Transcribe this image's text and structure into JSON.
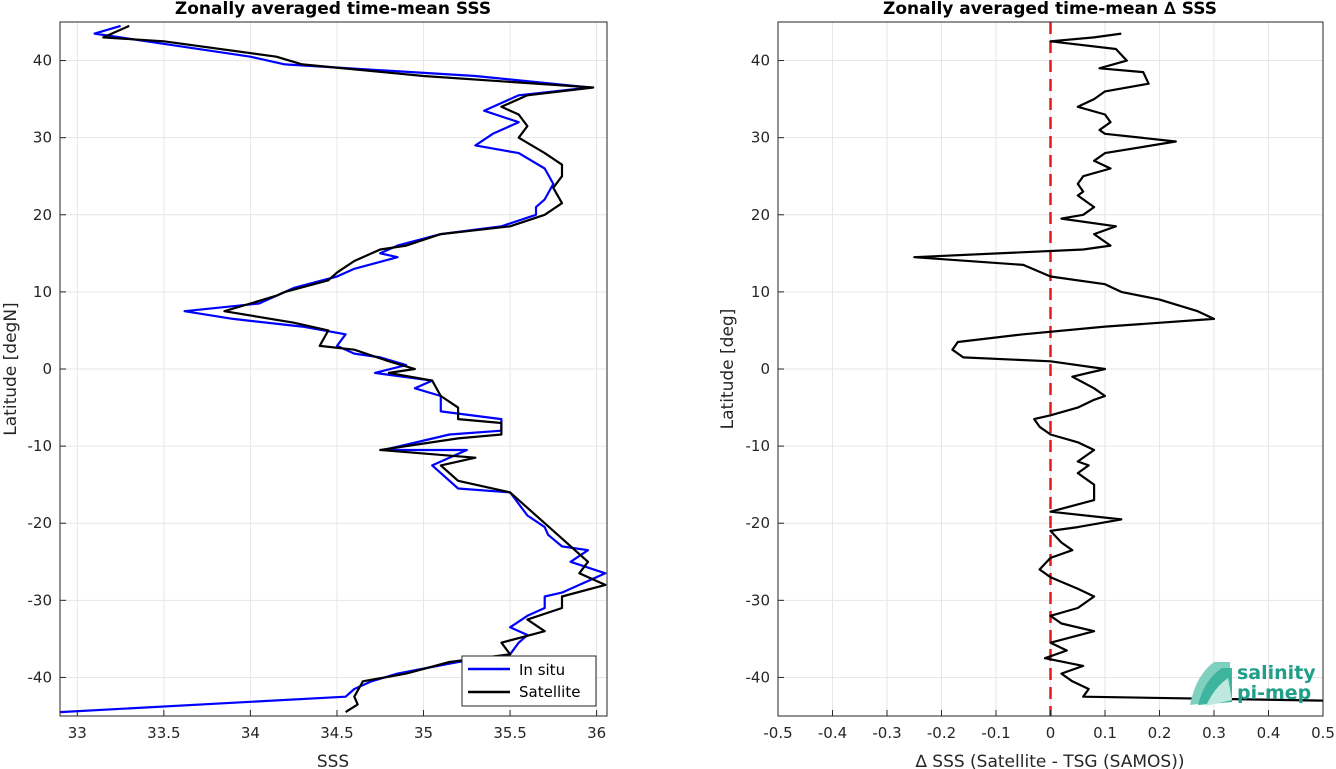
{
  "chart_data": [
    {
      "type": "line",
      "title": "Zonally averaged time-mean SSS",
      "xlabel": "SSS",
      "ylabel": "Latitude [degN]",
      "xlim": [
        32.9,
        36.06
      ],
      "ylim": [
        -45,
        45
      ],
      "xticks": [
        "33",
        "33.5",
        "34",
        "34.5",
        "35",
        "35.5",
        "36"
      ],
      "xtick_values": [
        33,
        33.5,
        34,
        34.5,
        35,
        35.5,
        36
      ],
      "yticks": [
        "-40",
        "-30",
        "-20",
        "-10",
        "0",
        "10",
        "20",
        "30",
        "40"
      ],
      "ytick_values": [
        -40,
        -30,
        -20,
        -10,
        0,
        10,
        20,
        30,
        40
      ],
      "grid": true,
      "legend": "bottom-right",
      "series": [
        {
          "name": "In situ",
          "color": "#0000ff",
          "points": [
            [
              33.25,
              44.5
            ],
            [
              33.1,
              43.5
            ],
            [
              33.4,
              42.5
            ],
            [
              34.0,
              40.5
            ],
            [
              34.2,
              39.5
            ],
            [
              35.3,
              38
            ],
            [
              35.96,
              36.5
            ],
            [
              35.55,
              35.5
            ],
            [
              35.45,
              34.5
            ],
            [
              35.35,
              33.5
            ],
            [
              35.55,
              32
            ],
            [
              35.4,
              30.5
            ],
            [
              35.3,
              29
            ],
            [
              35.55,
              28
            ],
            [
              35.7,
              26
            ],
            [
              35.75,
              24
            ],
            [
              35.7,
              22
            ],
            [
              35.65,
              21
            ],
            [
              35.65,
              20
            ],
            [
              35.45,
              18.5
            ],
            [
              35.1,
              17.5
            ],
            [
              34.85,
              16
            ],
            [
              34.75,
              15
            ],
            [
              34.85,
              14.5
            ],
            [
              34.6,
              13
            ],
            [
              34.5,
              12
            ],
            [
              34.25,
              10.5
            ],
            [
              34.15,
              9.5
            ],
            [
              34.05,
              8.5
            ],
            [
              33.62,
              7.5
            ],
            [
              33.9,
              6.5
            ],
            [
              34.3,
              5.5
            ],
            [
              34.55,
              4.5
            ],
            [
              34.5,
              3
            ],
            [
              34.6,
              2
            ],
            [
              34.75,
              1.5
            ],
            [
              34.9,
              0.5
            ],
            [
              34.72,
              -0.5
            ],
            [
              35.05,
              -1.5
            ],
            [
              34.95,
              -2.5
            ],
            [
              35.1,
              -3.5
            ],
            [
              35.1,
              -5.5
            ],
            [
              35.45,
              -6.5
            ],
            [
              35.45,
              -8
            ],
            [
              35.15,
              -8.5
            ],
            [
              34.77,
              -10.5
            ],
            [
              35.25,
              -10.5
            ],
            [
              35.05,
              -12.5
            ],
            [
              35.1,
              -13.5
            ],
            [
              35.2,
              -15.5
            ],
            [
              35.5,
              -16
            ],
            [
              35.55,
              -17.5
            ],
            [
              35.6,
              -19
            ],
            [
              35.7,
              -20.5
            ],
            [
              35.72,
              -21.5
            ],
            [
              35.8,
              -23
            ],
            [
              35.95,
              -23.5
            ],
            [
              35.85,
              -25
            ],
            [
              36.05,
              -26.5
            ],
            [
              35.8,
              -29
            ],
            [
              35.7,
              -29.5
            ],
            [
              35.7,
              -31
            ],
            [
              35.6,
              -32
            ],
            [
              35.5,
              -33.5
            ],
            [
              35.6,
              -34.5
            ],
            [
              35.55,
              -35.5
            ],
            [
              35.5,
              -37
            ],
            [
              35.2,
              -38
            ],
            [
              34.85,
              -39.5
            ],
            [
              34.7,
              -40.5
            ],
            [
              34.6,
              -41.5
            ],
            [
              34.55,
              -42.5
            ],
            [
              32.9,
              -44.5
            ]
          ]
        },
        {
          "name": "Satellite",
          "color": "#000000",
          "points": [
            [
              33.3,
              44.5
            ],
            [
              33.15,
              43
            ],
            [
              33.5,
              42.5
            ],
            [
              34.15,
              40.5
            ],
            [
              34.3,
              39.5
            ],
            [
              35.0,
              38
            ],
            [
              35.98,
              36.5
            ],
            [
              35.6,
              35.5
            ],
            [
              35.45,
              34
            ],
            [
              35.55,
              33
            ],
            [
              35.6,
              31.5
            ],
            [
              35.55,
              30
            ],
            [
              35.7,
              28
            ],
            [
              35.8,
              26.5
            ],
            [
              35.8,
              25
            ],
            [
              35.75,
              23.5
            ],
            [
              35.8,
              21.5
            ],
            [
              35.7,
              20
            ],
            [
              35.5,
              18.5
            ],
            [
              35.1,
              17.5
            ],
            [
              34.9,
              16
            ],
            [
              34.75,
              15.5
            ],
            [
              34.6,
              14
            ],
            [
              34.5,
              12.5
            ],
            [
              34.45,
              11.5
            ],
            [
              34.2,
              10
            ],
            [
              34.15,
              9.5
            ],
            [
              34.0,
              8.5
            ],
            [
              33.85,
              7.5
            ],
            [
              34.25,
              6
            ],
            [
              34.45,
              5
            ],
            [
              34.4,
              3
            ],
            [
              34.6,
              2.5
            ],
            [
              34.8,
              1
            ],
            [
              34.95,
              0
            ],
            [
              34.8,
              -0.5
            ],
            [
              35.05,
              -1.5
            ],
            [
              35.1,
              -3.5
            ],
            [
              35.2,
              -5
            ],
            [
              35.2,
              -6.5
            ],
            [
              35.45,
              -7
            ],
            [
              35.45,
              -8.5
            ],
            [
              35.2,
              -9
            ],
            [
              34.75,
              -10.5
            ],
            [
              35.3,
              -11.5
            ],
            [
              35.1,
              -12.5
            ],
            [
              35.2,
              -14.5
            ],
            [
              35.5,
              -16
            ],
            [
              35.6,
              -18
            ],
            [
              35.7,
              -20
            ],
            [
              35.8,
              -22
            ],
            [
              35.9,
              -24
            ],
            [
              35.95,
              -25
            ],
            [
              35.9,
              -26.5
            ],
            [
              36.05,
              -28
            ],
            [
              35.8,
              -29.5
            ],
            [
              35.8,
              -31
            ],
            [
              35.6,
              -32.5
            ],
            [
              35.7,
              -34
            ],
            [
              35.45,
              -35.5
            ],
            [
              35.5,
              -37
            ],
            [
              35.15,
              -38
            ],
            [
              34.9,
              -39.5
            ],
            [
              34.65,
              -40.5
            ],
            [
              34.6,
              -42.5
            ],
            [
              34.62,
              -43.5
            ],
            [
              34.55,
              -44.5
            ]
          ]
        }
      ]
    },
    {
      "type": "line",
      "title": "Zonally averaged time-mean ∆ SSS",
      "xlabel": "∆ SSS (Satellite - TSG (SAMOS))",
      "ylabel": "Latitude [deg]",
      "xlim": [
        -0.5,
        0.5
      ],
      "ylim": [
        -45,
        45
      ],
      "xticks": [
        "-0.5",
        "-0.4",
        "-0.3",
        "-0.2",
        "-0.1",
        "0",
        "0.1",
        "0.2",
        "0.3",
        "0.4",
        "0.5"
      ],
      "xtick_values": [
        -0.5,
        -0.4,
        -0.3,
        -0.2,
        -0.1,
        0,
        0.1,
        0.2,
        0.3,
        0.4,
        0.5
      ],
      "yticks": [
        "-40",
        "-30",
        "-20",
        "-10",
        "0",
        "10",
        "20",
        "30",
        "40"
      ],
      "ytick_values": [
        -40,
        -30,
        -20,
        -10,
        0,
        10,
        20,
        30,
        40
      ],
      "grid": true,
      "reference_line": {
        "x": 0,
        "color": "#e41a1c",
        "style": "dashed"
      },
      "series": [
        {
          "color": "#000000",
          "points": [
            [
              0.13,
              43.5
            ],
            [
              0.08,
              43
            ],
            [
              0.0,
              42.5
            ],
            [
              0.12,
              41.5
            ],
            [
              0.14,
              40
            ],
            [
              0.09,
              39
            ],
            [
              0.17,
              38.5
            ],
            [
              0.18,
              37
            ],
            [
              0.1,
              36
            ],
            [
              0.08,
              35
            ],
            [
              0.05,
              34
            ],
            [
              0.1,
              33
            ],
            [
              0.11,
              32
            ],
            [
              0.09,
              31
            ],
            [
              0.1,
              30.5
            ],
            [
              0.23,
              29.5
            ],
            [
              0.1,
              28
            ],
            [
              0.08,
              27
            ],
            [
              0.11,
              26
            ],
            [
              0.06,
              25
            ],
            [
              0.05,
              24
            ],
            [
              0.06,
              23
            ],
            [
              0.05,
              22.5
            ],
            [
              0.08,
              21
            ],
            [
              0.06,
              20
            ],
            [
              0.02,
              19.5
            ],
            [
              0.12,
              18.5
            ],
            [
              0.08,
              17.5
            ],
            [
              0.11,
              16
            ],
            [
              0.06,
              15.5
            ],
            [
              -0.25,
              14.5
            ],
            [
              -0.05,
              13.5
            ],
            [
              0.0,
              12
            ],
            [
              0.1,
              11
            ],
            [
              0.13,
              10
            ],
            [
              0.2,
              9
            ],
            [
              0.27,
              7.5
            ],
            [
              0.3,
              6.5
            ],
            [
              0.1,
              5.5
            ],
            [
              -0.05,
              4.5
            ],
            [
              -0.17,
              3.5
            ],
            [
              -0.18,
              2.5
            ],
            [
              -0.16,
              1.5
            ],
            [
              0.0,
              1
            ],
            [
              0.1,
              0
            ],
            [
              0.04,
              -1
            ],
            [
              0.08,
              -2.5
            ],
            [
              0.1,
              -3.5
            ],
            [
              0.08,
              -4
            ],
            [
              0.05,
              -5
            ],
            [
              0.0,
              -6
            ],
            [
              -0.03,
              -6.5
            ],
            [
              -0.02,
              -7.5
            ],
            [
              0.0,
              -8.5
            ],
            [
              0.05,
              -9.5
            ],
            [
              0.08,
              -10.5
            ],
            [
              0.05,
              -12
            ],
            [
              0.07,
              -12.5
            ],
            [
              0.05,
              -13.5
            ],
            [
              0.08,
              -15
            ],
            [
              0.08,
              -17
            ],
            [
              0.0,
              -18.5
            ],
            [
              0.13,
              -19.5
            ],
            [
              0.05,
              -20.5
            ],
            [
              0.0,
              -21
            ],
            [
              0.02,
              -22.5
            ],
            [
              0.04,
              -23.5
            ],
            [
              0.0,
              -24.5
            ],
            [
              -0.02,
              -26
            ],
            [
              0.0,
              -27
            ],
            [
              0.05,
              -28.5
            ],
            [
              0.08,
              -29.5
            ],
            [
              0.05,
              -31
            ],
            [
              0.0,
              -32
            ],
            [
              0.02,
              -33
            ],
            [
              0.08,
              -34
            ],
            [
              0.0,
              -35.5
            ],
            [
              0.03,
              -36.5
            ],
            [
              -0.01,
              -37.5
            ],
            [
              0.06,
              -38.5
            ],
            [
              0.02,
              -39.5
            ],
            [
              0.04,
              -40.5
            ],
            [
              0.07,
              -41.5
            ],
            [
              0.06,
              -42.5
            ],
            [
              0.5,
              -43
            ]
          ]
        }
      ]
    }
  ],
  "legend": {
    "insitu_label": "In situ",
    "satellite_label": "Satellite"
  },
  "logo": {
    "line1": "salinity",
    "line2": "pi-mep",
    "icon": "salinity-wave-icon"
  }
}
